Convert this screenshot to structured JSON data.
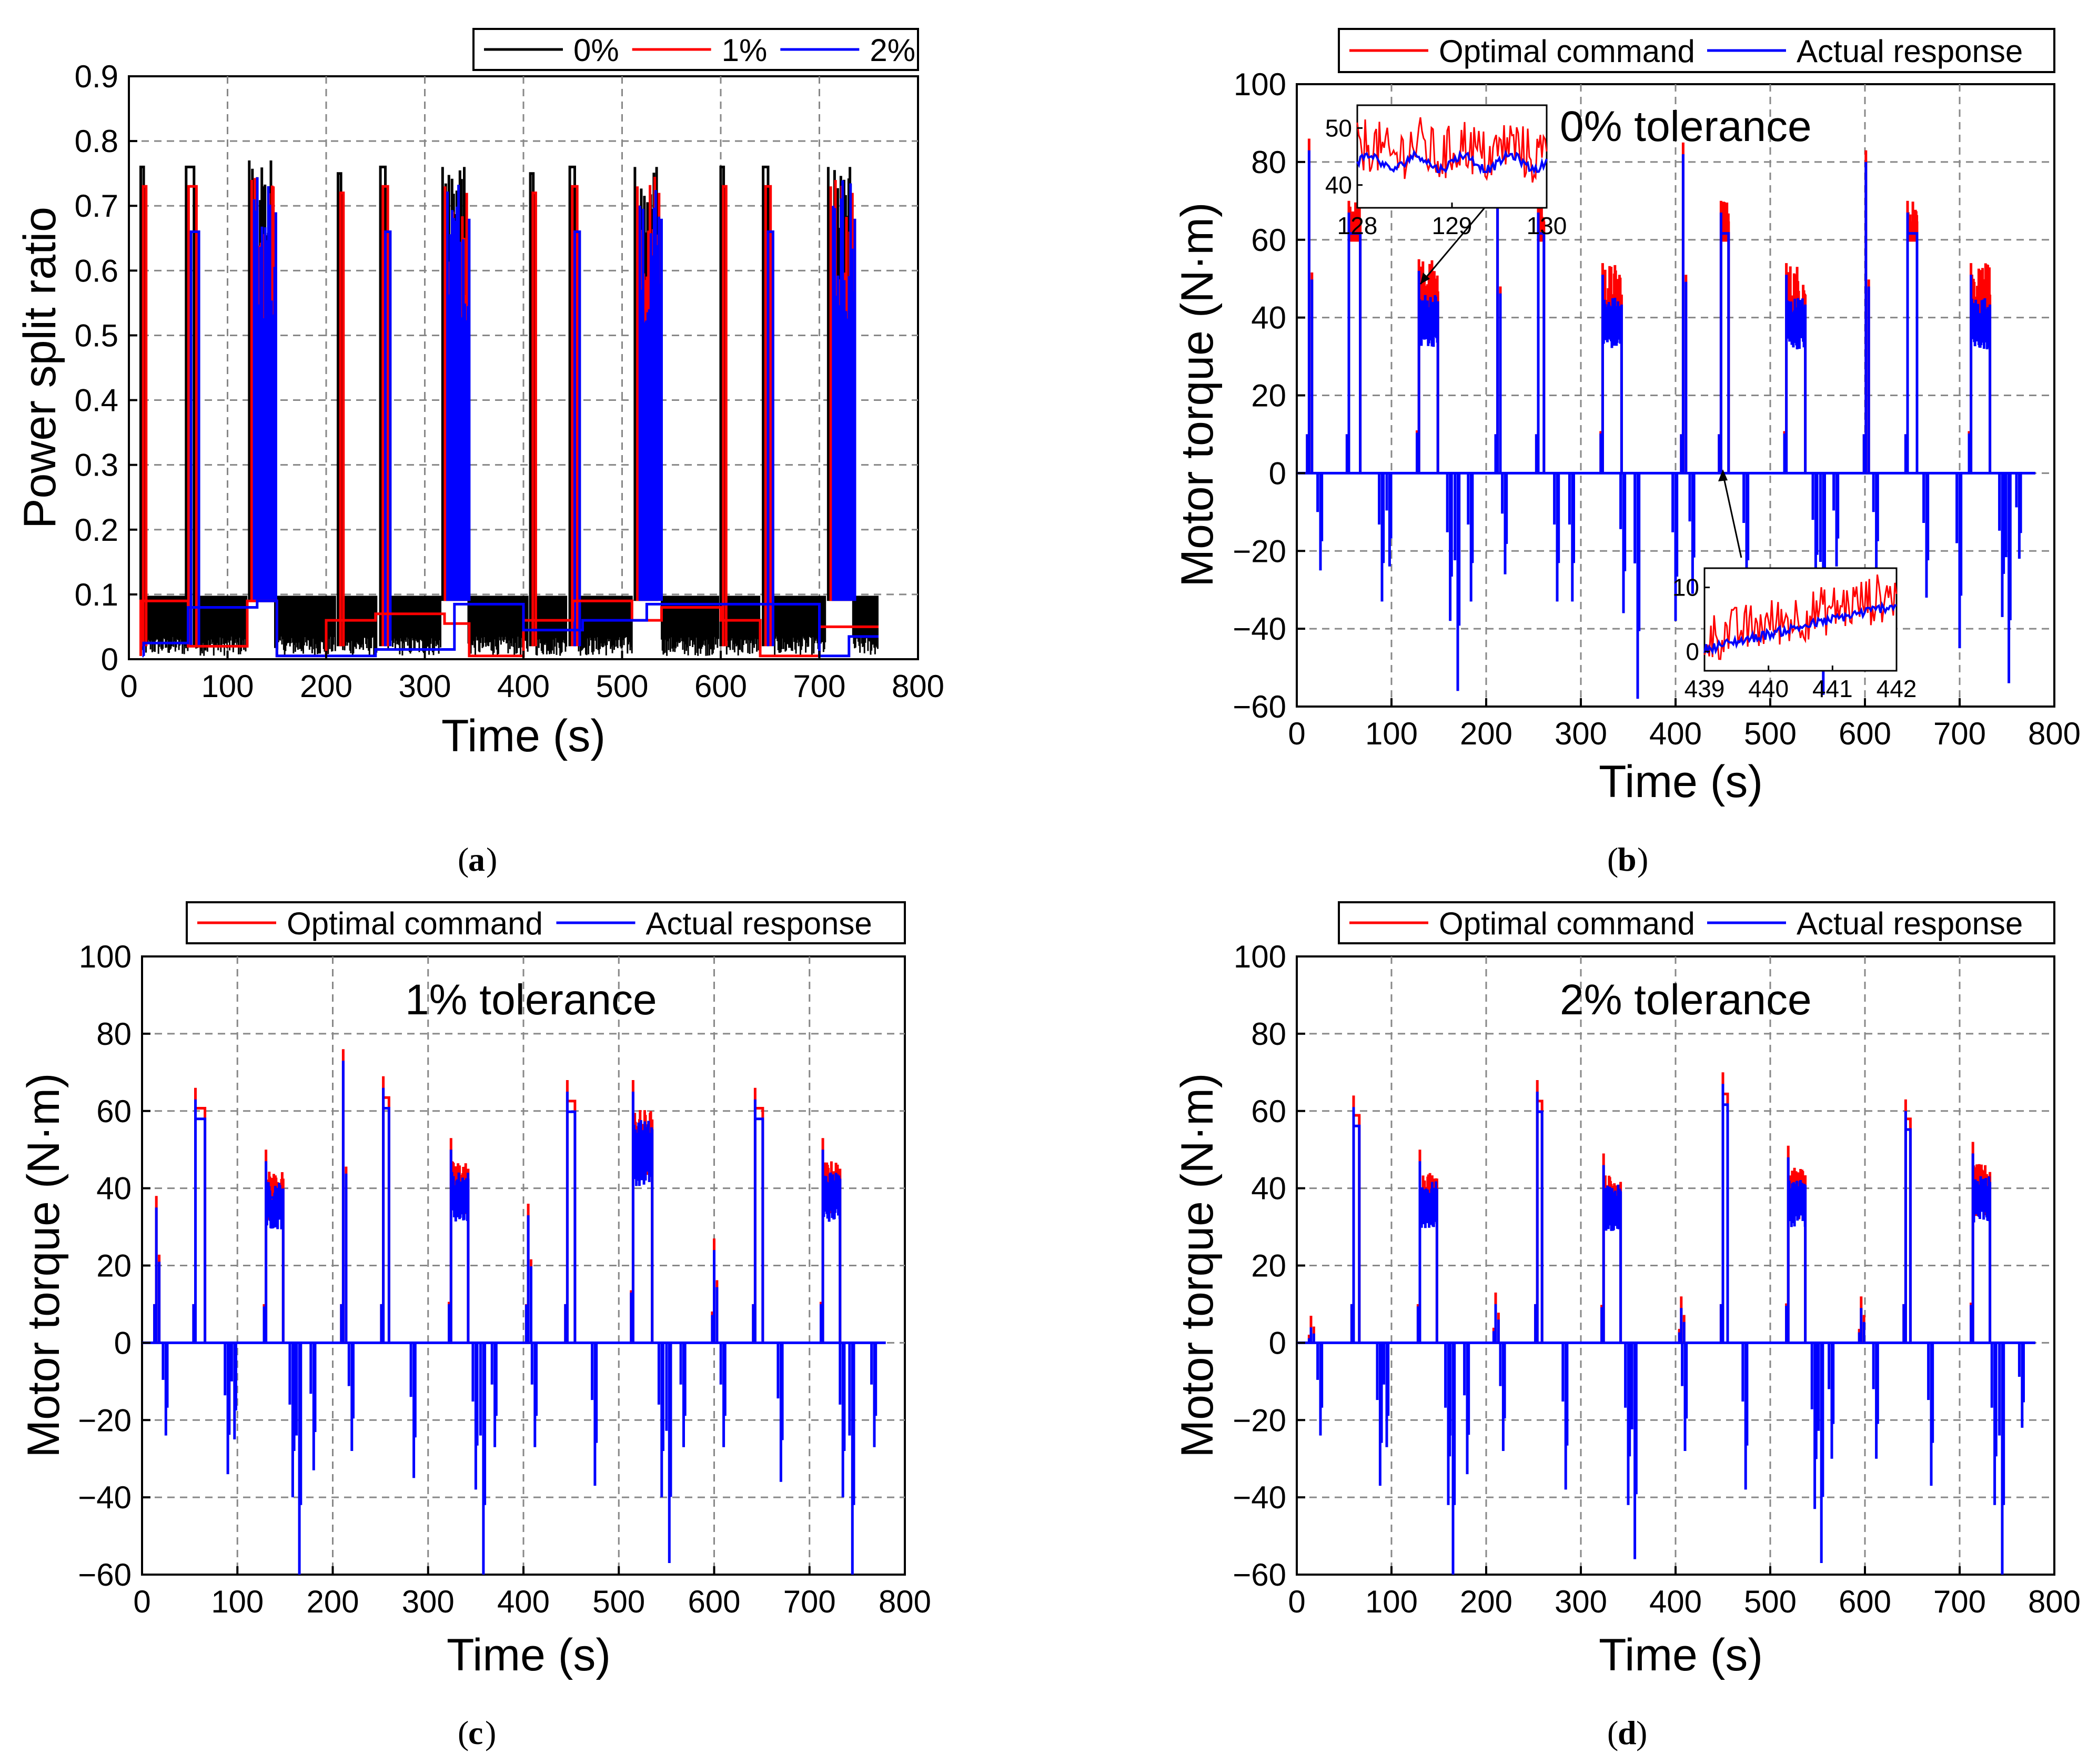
{
  "figure": {
    "panels": [
      "a",
      "b",
      "c",
      "d"
    ]
  },
  "chart_data": [
    {
      "id": "a",
      "type": "line",
      "caption": "a",
      "xlabel": "Time (s)",
      "ylabel": "Power split ratio",
      "xlim": [
        0,
        800
      ],
      "ylim": [
        0,
        0.9
      ],
      "xticks": [
        "0",
        "100",
        "200",
        "300",
        "400",
        "500",
        "600",
        "700",
        "800"
      ],
      "yticks": [
        "0",
        "0.1",
        "0.2",
        "0.3",
        "0.4",
        "0.5",
        "0.6",
        "0.7",
        "0.8",
        "0.9"
      ],
      "legend": [
        "0%",
        "1%",
        "2%"
      ],
      "colors": [
        "#000000",
        "#ff0000",
        "#0000ff"
      ],
      "pulses": [
        {
          "t": 12,
          "w": 3,
          "h": 0.76,
          "series": [
            0,
            1
          ]
        },
        {
          "t": 58,
          "w": 8,
          "h": 0.76,
          "series": [
            0,
            1,
            2
          ]
        },
        {
          "t": 122,
          "w": 22,
          "h": 0.77,
          "series": [
            0,
            1,
            2
          ],
          "cluster": true
        },
        {
          "t": 212,
          "w": 3,
          "h": 0.75,
          "series": [
            0,
            1
          ]
        },
        {
          "t": 255,
          "w": 5,
          "h": 0.76,
          "series": [
            0,
            1,
            2
          ]
        },
        {
          "t": 318,
          "w": 22,
          "h": 0.76,
          "series": [
            0,
            1,
            2
          ],
          "cluster": true
        },
        {
          "t": 407,
          "w": 3,
          "h": 0.75,
          "series": [
            0,
            1
          ]
        },
        {
          "t": 447,
          "w": 5,
          "h": 0.76,
          "series": [
            0,
            1,
            2
          ]
        },
        {
          "t": 513,
          "w": 22,
          "h": 0.76,
          "series": [
            0,
            1,
            2
          ],
          "cluster": true
        },
        {
          "t": 600,
          "w": 3,
          "h": 0.76,
          "series": [
            0,
            1
          ]
        },
        {
          "t": 643,
          "w": 5,
          "h": 0.76,
          "series": [
            0,
            1,
            2
          ]
        },
        {
          "t": 709,
          "w": 22,
          "h": 0.76,
          "series": [
            0,
            1,
            2
          ],
          "cluster": true
        }
      ]
    },
    {
      "id": "b",
      "type": "line",
      "caption": "b",
      "annotation": "0% tolerance",
      "xlabel": "Time (s)",
      "ylabel": "Motor torque (N·m)",
      "xlim": [
        0,
        800
      ],
      "ylim": [
        -60,
        100
      ],
      "xticks": [
        "0",
        "100",
        "200",
        "300",
        "400",
        "500",
        "600",
        "700",
        "800"
      ],
      "yticks": [
        "-60",
        "-40",
        "-20",
        "0",
        "20",
        "40",
        "60",
        "80",
        "100"
      ],
      "legend": [
        "Optimal command",
        "Actual response"
      ],
      "colors": [
        "#ff0000",
        "#0000ff"
      ],
      "inset_1": {
        "xticks": [
          "128",
          "129",
          "130"
        ],
        "yticks": [
          "40",
          "50"
        ],
        "xlim": [
          128,
          130
        ],
        "ylim": [
          36,
          54
        ]
      },
      "inset_2": {
        "xticks": [
          "439",
          "440",
          "441",
          "442"
        ],
        "yticks": [
          "0",
          "10"
        ],
        "xlim": [
          439,
          442
        ],
        "ylim": [
          -3,
          13
        ]
      },
      "peaks": [
        {
          "t": 13,
          "v": 86,
          "w": 3
        },
        {
          "t": 55,
          "v": 70,
          "w": 12
        },
        {
          "t": 127,
          "v": 55,
          "w": 22,
          "cluster": true
        },
        {
          "t": 212,
          "v": 80,
          "w": 3
        },
        {
          "t": 255,
          "v": 70,
          "w": 6
        },
        {
          "t": 321,
          "v": 54,
          "w": 22,
          "cluster": true
        },
        {
          "t": 408,
          "v": 85,
          "w": 3
        },
        {
          "t": 448,
          "v": 70,
          "w": 8
        },
        {
          "t": 515,
          "v": 54,
          "w": 22,
          "cluster": true
        },
        {
          "t": 601,
          "v": 83,
          "w": 3
        },
        {
          "t": 645,
          "v": 70,
          "w": 10
        },
        {
          "t": 710,
          "v": 54,
          "w": 22,
          "cluster": true
        }
      ],
      "troughs": [
        {
          "t": 25,
          "v": -25
        },
        {
          "t": 90,
          "v": -33
        },
        {
          "t": 98,
          "v": -24
        },
        {
          "t": 162,
          "v": -38
        },
        {
          "t": 170,
          "v": -56
        },
        {
          "t": 184,
          "v": -33
        },
        {
          "t": 220,
          "v": -26
        },
        {
          "t": 275,
          "v": -33
        },
        {
          "t": 291,
          "v": -33
        },
        {
          "t": 345,
          "v": -36
        },
        {
          "t": 360,
          "v": -58
        },
        {
          "t": 400,
          "v": -38
        },
        {
          "t": 418,
          "v": -31
        },
        {
          "t": 475,
          "v": -32
        },
        {
          "t": 548,
          "v": -30
        },
        {
          "t": 556,
          "v": -57
        },
        {
          "t": 570,
          "v": -24
        },
        {
          "t": 612,
          "v": -25
        },
        {
          "t": 665,
          "v": -32
        },
        {
          "t": 700,
          "v": -45
        },
        {
          "t": 745,
          "v": -37
        },
        {
          "t": 752,
          "v": -54
        },
        {
          "t": 763,
          "v": -22
        }
      ]
    },
    {
      "id": "c",
      "type": "line",
      "caption": "c",
      "annotation": "1% tolerance",
      "xlabel": "Time (s)",
      "ylabel": "Motor torque (N·m)",
      "xlim": [
        0,
        800
      ],
      "ylim": [
        -60,
        100
      ],
      "xticks": [
        "0",
        "100",
        "200",
        "300",
        "400",
        "500",
        "600",
        "700",
        "800"
      ],
      "yticks": [
        "-60",
        "-40",
        "-20",
        "0",
        "20",
        "40",
        "60",
        "80",
        "100"
      ],
      "legend": [
        "Optimal command",
        "Actual response"
      ],
      "colors": [
        "#ff0000",
        "#0000ff"
      ],
      "peaks": [
        {
          "t": 15,
          "v": 38,
          "w": 3
        },
        {
          "t": 56,
          "v": 66,
          "w": 10
        },
        {
          "t": 128,
          "v": 50,
          "w": 20,
          "cluster": true
        },
        {
          "t": 211,
          "v": 76,
          "w": 3
        },
        {
          "t": 253,
          "v": 69,
          "w": 6
        },
        {
          "t": 322,
          "v": 53,
          "w": 20,
          "cluster": true
        },
        {
          "t": 405,
          "v": 36,
          "w": 3
        },
        {
          "t": 446,
          "v": 68,
          "w": 8
        },
        {
          "t": 513,
          "v": 68,
          "w": 22,
          "cluster": true
        },
        {
          "t": 600,
          "v": 27,
          "w": 3
        },
        {
          "t": 643,
          "v": 66,
          "w": 8
        },
        {
          "t": 712,
          "v": 53,
          "w": 20,
          "cluster": true
        }
      ],
      "troughs": [
        {
          "t": 25,
          "v": -24
        },
        {
          "t": 90,
          "v": -34
        },
        {
          "t": 97,
          "v": -25
        },
        {
          "t": 158,
          "v": -40
        },
        {
          "t": 165,
          "v": -60
        },
        {
          "t": 180,
          "v": -33
        },
        {
          "t": 220,
          "v": -28
        },
        {
          "t": 285,
          "v": -35
        },
        {
          "t": 350,
          "v": -38
        },
        {
          "t": 358,
          "v": -60
        },
        {
          "t": 370,
          "v": -27
        },
        {
          "t": 412,
          "v": -27
        },
        {
          "t": 475,
          "v": -37
        },
        {
          "t": 545,
          "v": -40
        },
        {
          "t": 553,
          "v": -57
        },
        {
          "t": 568,
          "v": -27
        },
        {
          "t": 610,
          "v": -27
        },
        {
          "t": 670,
          "v": -36
        },
        {
          "t": 735,
          "v": -40
        },
        {
          "t": 745,
          "v": -60
        },
        {
          "t": 768,
          "v": -27
        }
      ]
    },
    {
      "id": "d",
      "type": "line",
      "caption": "d",
      "annotation": "2% tolerance",
      "xlabel": "Time (s)",
      "ylabel": "Motor torque (N·m)",
      "xlim": [
        0,
        800
      ],
      "ylim": [
        -60,
        100
      ],
      "xticks": [
        "0",
        "100",
        "200",
        "300",
        "400",
        "500",
        "600",
        "700",
        "800"
      ],
      "yticks": [
        "-60",
        "-40",
        "-20",
        "0",
        "20",
        "40",
        "60",
        "80",
        "100"
      ],
      "legend": [
        "Optimal command",
        "Actual response"
      ],
      "colors": [
        "#ff0000",
        "#0000ff"
      ],
      "peaks": [
        {
          "t": 15,
          "v": 7,
          "w": 3
        },
        {
          "t": 60,
          "v": 64,
          "w": 6
        },
        {
          "t": 128,
          "v": 50,
          "w": 20,
          "cluster": true
        },
        {
          "t": 210,
          "v": 13,
          "w": 3
        },
        {
          "t": 254,
          "v": 68,
          "w": 5
        },
        {
          "t": 322,
          "v": 49,
          "w": 20,
          "cluster": true
        },
        {
          "t": 406,
          "v": 12,
          "w": 3
        },
        {
          "t": 450,
          "v": 70,
          "w": 5
        },
        {
          "t": 517,
          "v": 51,
          "w": 20,
          "cluster": true
        },
        {
          "t": 596,
          "v": 12,
          "w": 3
        },
        {
          "t": 643,
          "v": 63,
          "w": 5
        },
        {
          "t": 712,
          "v": 52,
          "w": 20,
          "cluster": true
        }
      ],
      "troughs": [
        {
          "t": 25,
          "v": -24
        },
        {
          "t": 88,
          "v": -37
        },
        {
          "t": 95,
          "v": -27
        },
        {
          "t": 160,
          "v": -42
        },
        {
          "t": 165,
          "v": -60
        },
        {
          "t": 180,
          "v": -34
        },
        {
          "t": 218,
          "v": -28
        },
        {
          "t": 284,
          "v": -38
        },
        {
          "t": 350,
          "v": -42
        },
        {
          "t": 357,
          "v": -56
        },
        {
          "t": 410,
          "v": -28
        },
        {
          "t": 474,
          "v": -38
        },
        {
          "t": 547,
          "v": -43
        },
        {
          "t": 554,
          "v": -57
        },
        {
          "t": 565,
          "v": -30
        },
        {
          "t": 612,
          "v": -30
        },
        {
          "t": 670,
          "v": -37
        },
        {
          "t": 737,
          "v": -42
        },
        {
          "t": 745,
          "v": -60
        },
        {
          "t": 766,
          "v": -22
        }
      ]
    }
  ]
}
